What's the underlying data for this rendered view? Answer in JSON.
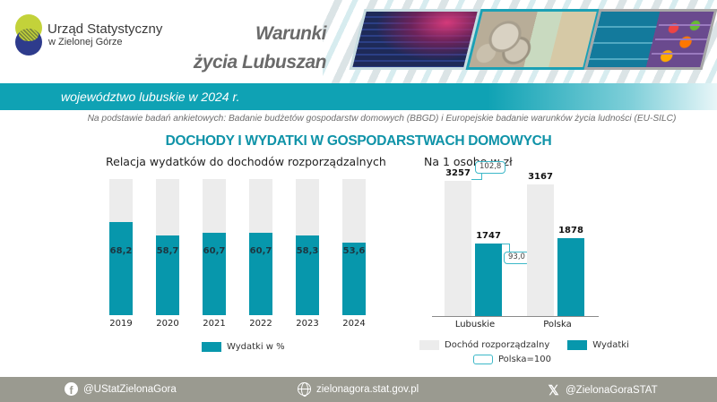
{
  "header": {
    "org_name": "Urząd Statystyczny",
    "org_sub": "w Zielonej Górze",
    "pub_title_line1": "Warunki",
    "pub_title_line2": "życia Lubuszan",
    "photos": [
      "cinema-photo",
      "money-photo",
      "fridge-photo"
    ]
  },
  "band": {
    "text": "województwo lubuskie w 2024 r."
  },
  "source_note": "Na podstawie badań ankietowych: Badanie budżetów gospodarstw domowych (BBGD) i Europejskie badanie warunków życia ludności (EU-SILC)",
  "main_title": "DOCHODY I WYDATKI W GOSPODARSTWACH DOMOWYCH",
  "colors": {
    "teal": "#0797ac",
    "teal_band": "#0fa2b4",
    "title_teal": "#0f93a8",
    "grey_bar": "#ececec",
    "index_border": "#3cb8c8",
    "footer_bg": "#9a9a90"
  },
  "left_chart": {
    "title": "Relacja wydatków do dochodów rozporządzalnych",
    "bars": [
      {
        "year": "2019",
        "value": 68.2,
        "label": "68,2"
      },
      {
        "year": "2020",
        "value": 58.7,
        "label": "58,7"
      },
      {
        "year": "2021",
        "value": 60.7,
        "label": "60,7"
      },
      {
        "year": "2022",
        "value": 60.7,
        "label": "60,7"
      },
      {
        "year": "2023",
        "value": 58.3,
        "label": "58,3"
      },
      {
        "year": "2024",
        "value": 53.6,
        "label": "53,6"
      }
    ],
    "legend": "Wydatki w %"
  },
  "right_chart": {
    "title": "Na 1 osobę w zł",
    "groups": [
      {
        "name": "Lubuskie",
        "income": 3257,
        "income_label": "3257",
        "expenses": 1747,
        "expenses_label": "1747",
        "income_index": "102,8",
        "expenses_index": "93,0"
      },
      {
        "name": "Polska",
        "income": 3167,
        "income_label": "3167",
        "expenses": 1878,
        "expenses_label": "1878"
      }
    ],
    "legend": {
      "income": "Dochód rozporządzalny",
      "expenses": "Wydatki",
      "index": "Polska=100"
    }
  },
  "footer": {
    "facebook": "@UStatZielonaGora",
    "website": "zielonagora.stat.gov.pl",
    "x": "@ZielonaGoraSTAT"
  },
  "chart_data": [
    {
      "type": "bar",
      "title": "Relacja wydatków do dochodów rozporządzalnych",
      "categories": [
        "2019",
        "2020",
        "2021",
        "2022",
        "2023",
        "2024"
      ],
      "series": [
        {
          "name": "Wydatki w %",
          "values": [
            68.2,
            58.7,
            60.7,
            60.7,
            58.3,
            53.6
          ]
        }
      ],
      "xlabel": "",
      "ylabel": "%",
      "ylim": [
        0,
        100
      ],
      "grid": false,
      "legend_position": "bottom",
      "notes": "Stacked against 100% grey background bars"
    },
    {
      "type": "bar",
      "title": "Na 1 osobę w zł",
      "categories": [
        "Lubuskie",
        "Polska"
      ],
      "series": [
        {
          "name": "Dochód rozporządzalny",
          "values": [
            3257,
            3167
          ]
        },
        {
          "name": "Wydatki",
          "values": [
            1747,
            1878
          ]
        }
      ],
      "annotations": [
        {
          "category": "Lubuskie",
          "series": "Dochód rozporządzalny",
          "text": "102,8"
        },
        {
          "category": "Lubuskie",
          "series": "Wydatki",
          "text": "93,0"
        }
      ],
      "annotation_legend": "Polska=100",
      "xlabel": "",
      "ylabel": "zł",
      "grid": false,
      "legend_position": "bottom"
    }
  ]
}
